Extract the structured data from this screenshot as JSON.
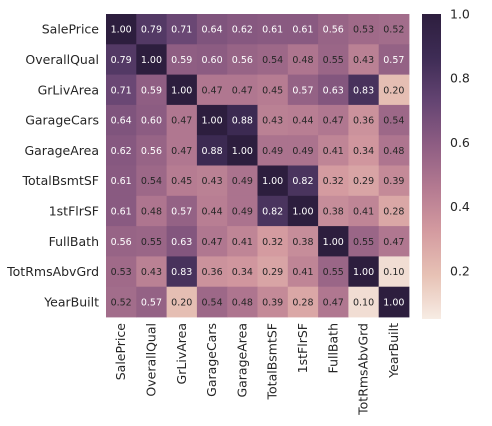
{
  "chart_data": {
    "type": "heatmap",
    "title": "",
    "xlabel": "",
    "ylabel": "",
    "labels": [
      "SalePrice",
      "OverallQual",
      "GrLivArea",
      "GarageCars",
      "GarageArea",
      "TotalBsmtSF",
      "1stFlrSF",
      "FullBath",
      "TotRmsAbvGrd",
      "YearBuilt"
    ],
    "values": [
      [
        1.0,
        0.79,
        0.71,
        0.64,
        0.62,
        0.61,
        0.61,
        0.56,
        0.53,
        0.52
      ],
      [
        0.79,
        1.0,
        0.59,
        0.6,
        0.56,
        0.54,
        0.48,
        0.55,
        0.43,
        0.57
      ],
      [
        0.71,
        0.59,
        1.0,
        0.47,
        0.47,
        0.45,
        0.57,
        0.63,
        0.83,
        0.2
      ],
      [
        0.64,
        0.6,
        0.47,
        1.0,
        0.88,
        0.43,
        0.44,
        0.47,
        0.36,
        0.54
      ],
      [
        0.62,
        0.56,
        0.47,
        0.88,
        1.0,
        0.49,
        0.49,
        0.41,
        0.34,
        0.48
      ],
      [
        0.61,
        0.54,
        0.45,
        0.43,
        0.49,
        1.0,
        0.82,
        0.32,
        0.29,
        0.39
      ],
      [
        0.61,
        0.48,
        0.57,
        0.44,
        0.49,
        0.82,
        1.0,
        0.38,
        0.41,
        0.28
      ],
      [
        0.56,
        0.55,
        0.63,
        0.47,
        0.41,
        0.32,
        0.38,
        1.0,
        0.55,
        0.47
      ],
      [
        0.53,
        0.43,
        0.83,
        0.36,
        0.34,
        0.29,
        0.41,
        0.55,
        1.0,
        0.1
      ],
      [
        0.52,
        0.57,
        0.2,
        0.54,
        0.48,
        0.39,
        0.28,
        0.47,
        0.1,
        1.0
      ]
    ],
    "annotation_format": "0.00",
    "colorbar": {
      "range": [
        0.05,
        1.0
      ],
      "ticks": [
        0.2,
        0.4,
        0.6,
        0.8,
        1.0
      ],
      "tick_labels": [
        "0.2",
        "0.4",
        "0.6",
        "0.8",
        "1.0"
      ]
    },
    "colormap": [
      "#f7ece4",
      "#e7c2b5",
      "#d49ba0",
      "#b47a91",
      "#8e5d83",
      "#644472",
      "#3e2c55",
      "#2d1e3e"
    ],
    "grid": false
  }
}
